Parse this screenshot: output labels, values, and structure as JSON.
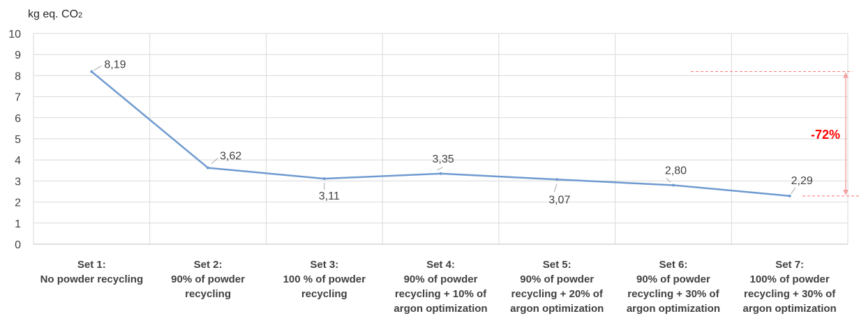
{
  "chart_data": {
    "type": "line",
    "ylabel": "kg eq. CO",
    "ylabel_subscript": "2",
    "ylim": [
      0,
      10
    ],
    "yticks": [
      "0",
      "1",
      "2",
      "3",
      "4",
      "5",
      "6",
      "7",
      "8",
      "9",
      "10"
    ],
    "grid": true,
    "categories": [
      [
        "Set 1:",
        "No powder recycling"
      ],
      [
        "Set 2:",
        "90% of powder",
        "recycling"
      ],
      [
        "Set 3:",
        "100 % of powder",
        "recycling"
      ],
      [
        "Set 4:",
        "90% of powder",
        "recycling + 10% of",
        "argon optimization"
      ],
      [
        "Set 5:",
        "90% of powder",
        "recycling + 20% of",
        "argon optimization"
      ],
      [
        "Set 6:",
        "90% of powder",
        "recycling + 30% of",
        "argon optimization"
      ],
      [
        "Set 7:",
        "100% of powder",
        "recycling + 30% of",
        "argon optimization"
      ]
    ],
    "series": [
      {
        "values": [
          8.19,
          3.62,
          3.11,
          3.35,
          3.07,
          2.8,
          2.29
        ],
        "labels": [
          "8,19",
          "3,62",
          "3,11",
          "3,35",
          "3,07",
          "2,80",
          "2,29"
        ],
        "color": "#6f9ad0"
      }
    ],
    "annotation": {
      "text": "-72%",
      "color": "#ff0000",
      "arrow_color": "#f4a3a3",
      "from_value": 8.19,
      "to_value": 2.29
    }
  }
}
